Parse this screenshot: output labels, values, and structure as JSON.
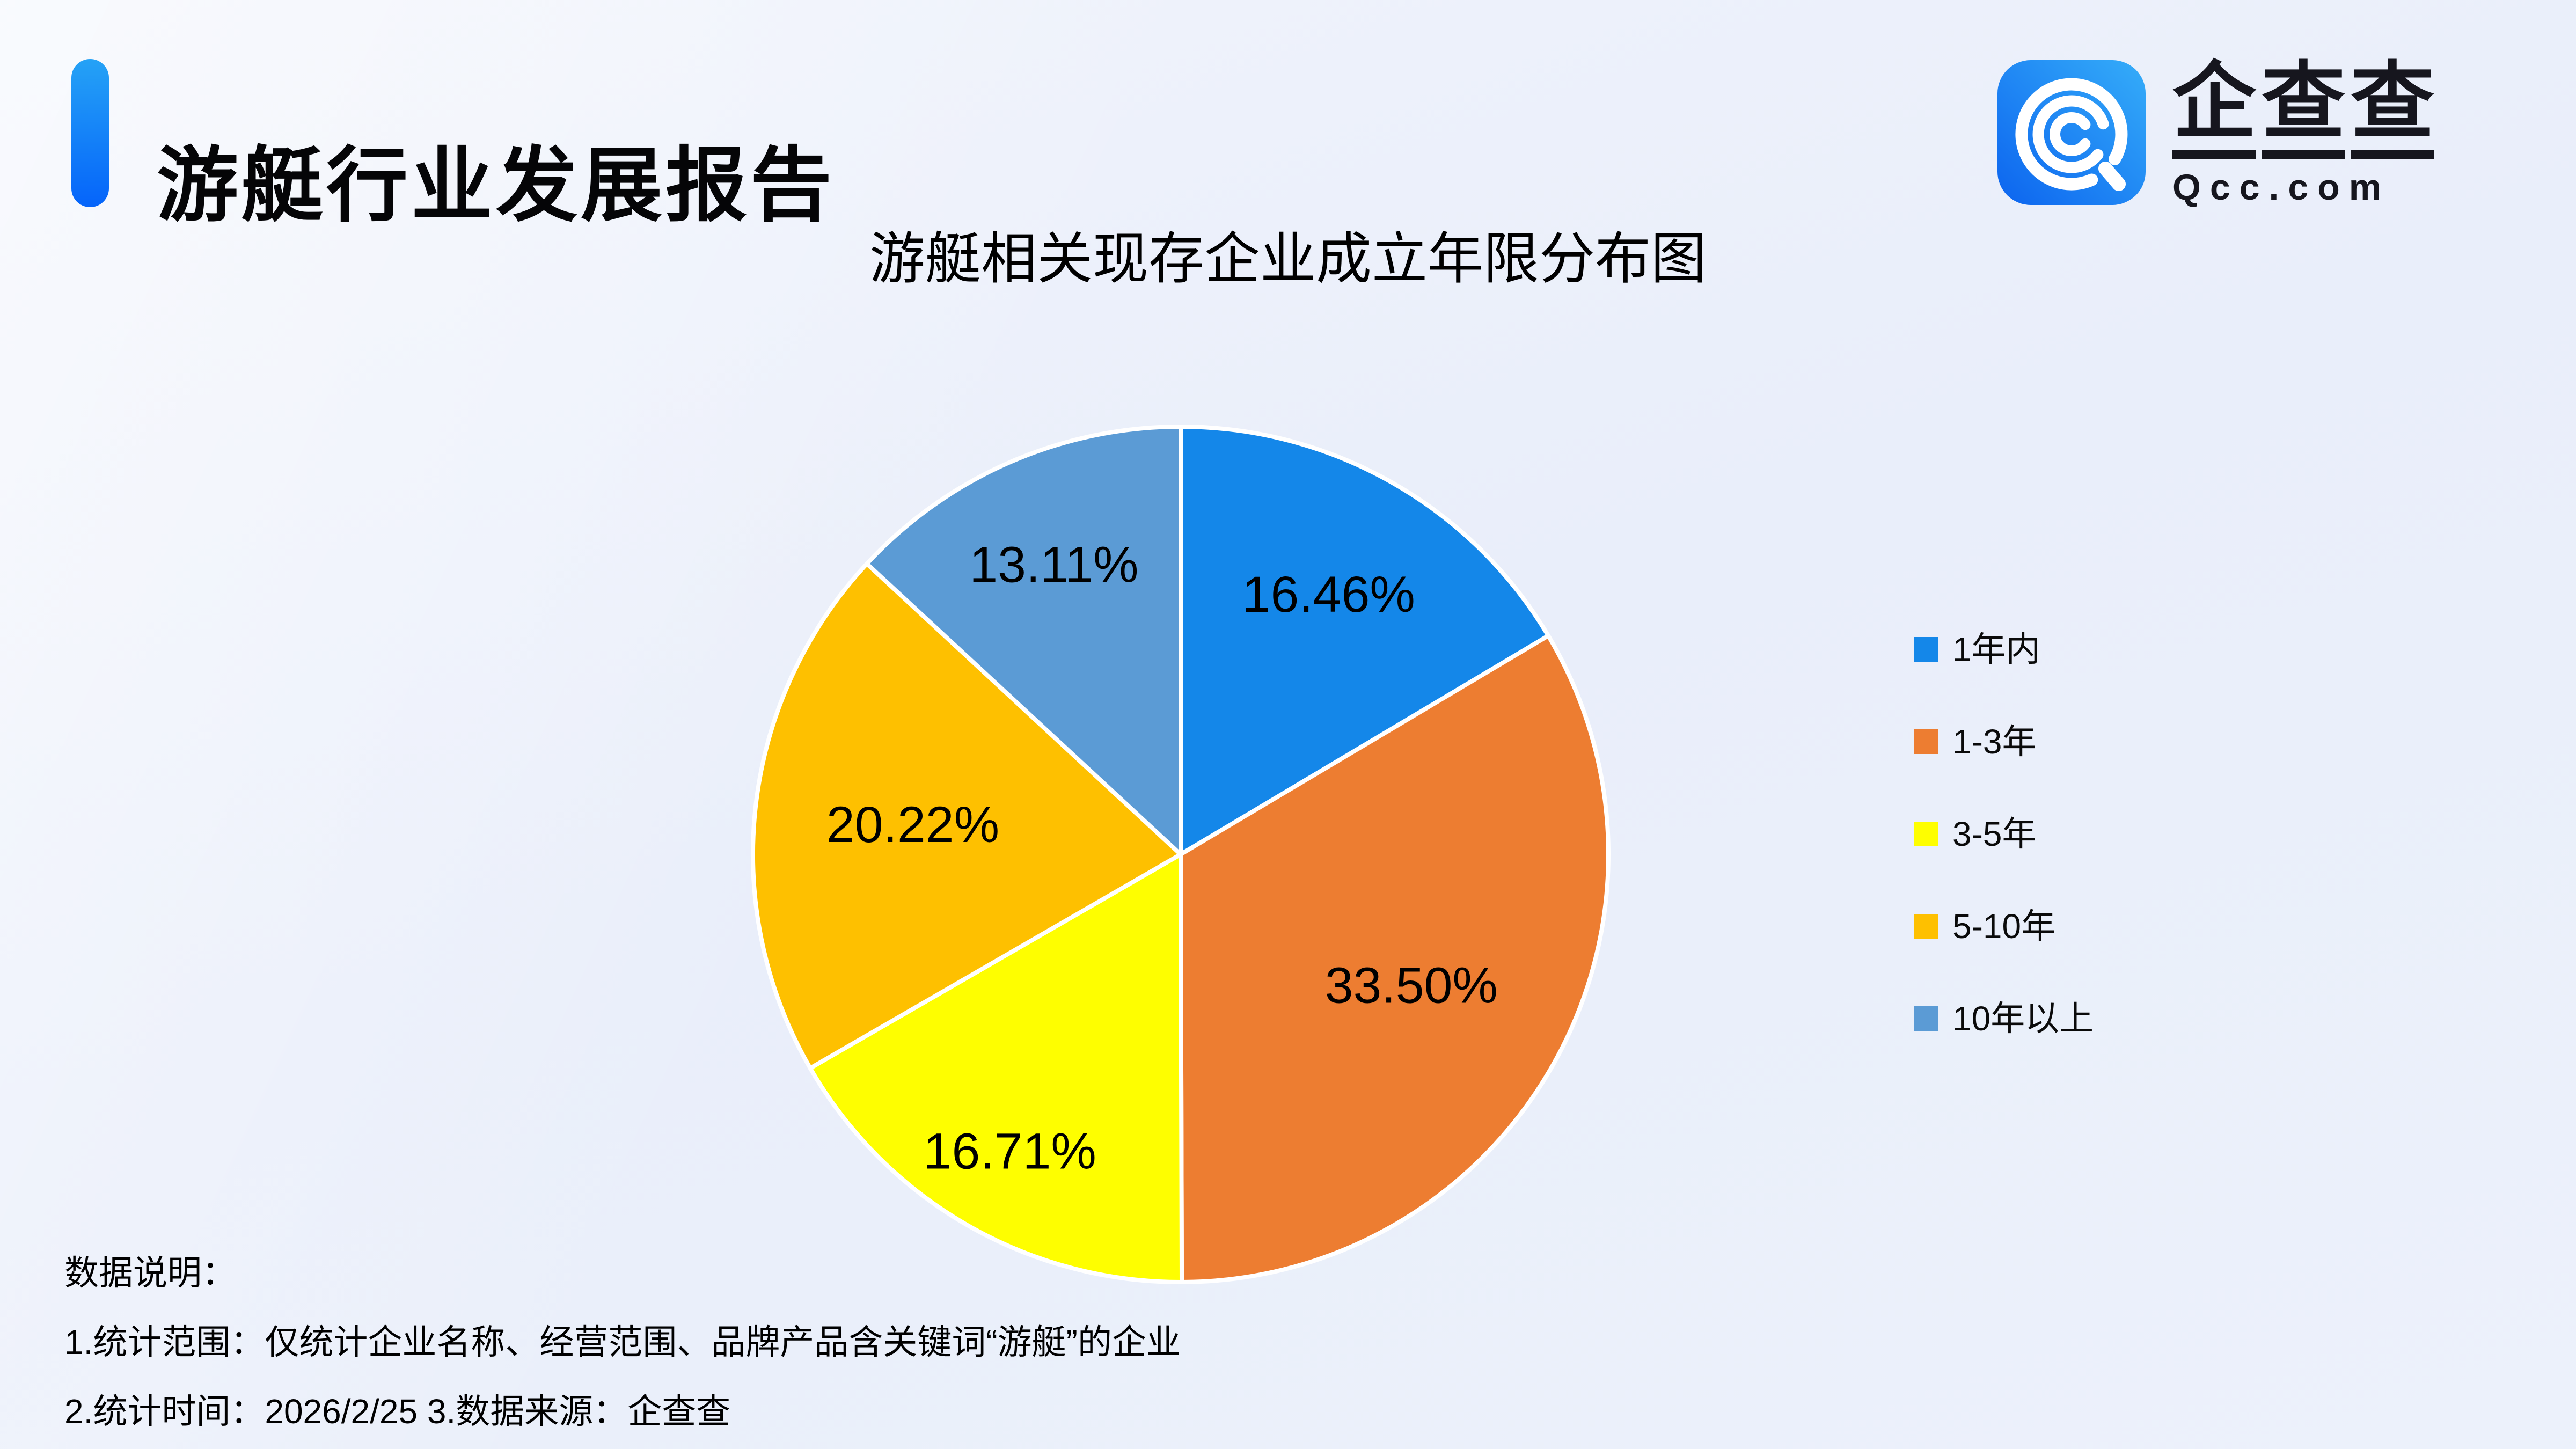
{
  "page": {
    "background_base": "#ebf0fa"
  },
  "header": {
    "title": "游艇行业发展报告",
    "accent_top": "#25a2f6",
    "accent_bottom": "#0564fa"
  },
  "brand": {
    "name_cn_chars": [
      "企",
      "查",
      "查"
    ],
    "name_en": "Qcc.com",
    "icon_gradient_start": "#0c64ef",
    "icon_gradient_end": "#35adf9"
  },
  "chart_data": {
    "type": "pie",
    "title": "游艇相关现存企业成立年限分布图",
    "categories": [
      "1年内",
      "1-3年",
      "3-5年",
      "5-10年",
      "10年以上"
    ],
    "values": [
      16.46,
      33.5,
      16.71,
      20.22,
      13.11
    ],
    "labels": [
      "16.46%",
      "33.50%",
      "16.71%",
      "20.22%",
      "13.11%"
    ],
    "colors": [
      "#1487e9",
      "#ed7d31",
      "#fefe00",
      "#fec000",
      "#5b9bd5"
    ],
    "start_angle_deg": 0,
    "direction": "clockwise",
    "legend_position": "right",
    "slice_border_color": "#ffffff",
    "label_color": "#000000"
  },
  "footnote": {
    "heading": "数据说明：",
    "line1": "1.统计范围：仅统计企业名称、经营范围、品牌产品含关键词“游艇”的企业",
    "line2": "2.统计时间：2026/2/25  3.数据来源：企查查"
  }
}
